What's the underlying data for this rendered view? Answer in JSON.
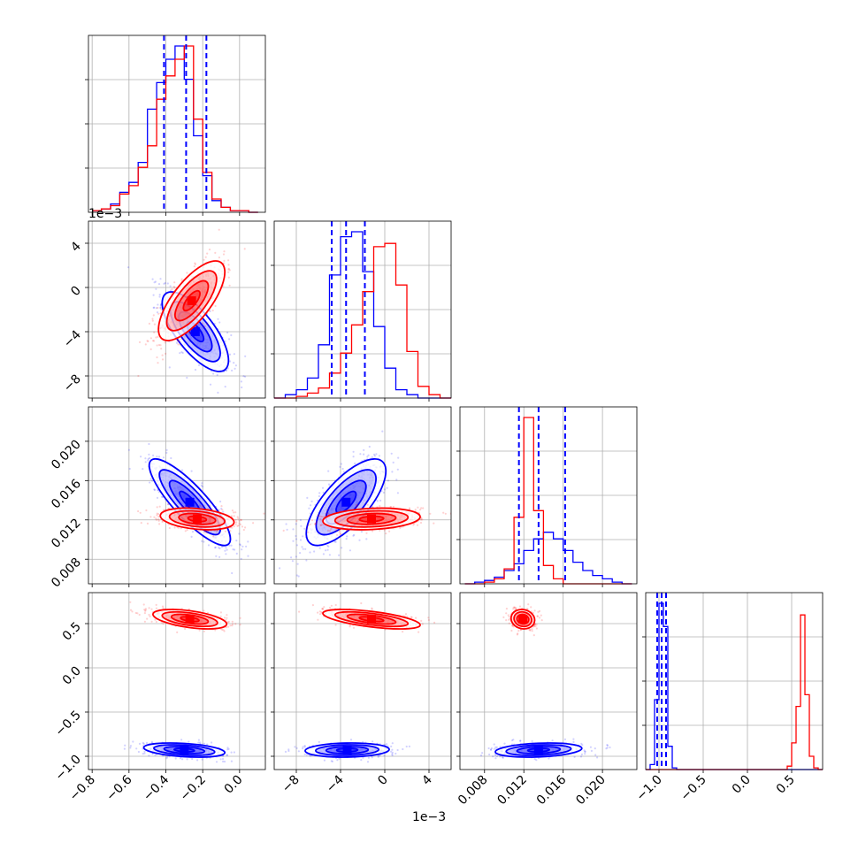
{
  "chart_data": {
    "type": "corner",
    "grid": true,
    "colors": {
      "series_a": "#0000ff",
      "series_b": "#ff0000",
      "grid": "#b0b0b0"
    },
    "series": [
      {
        "color": "#0000ff"
      },
      {
        "color": "#ff0000"
      }
    ],
    "parameters": [
      {
        "range": [
          -0.82,
          0.14
        ],
        "ticks": [
          -0.8,
          -0.6,
          -0.4,
          -0.2,
          0.0
        ],
        "tick_labels": [
          "−0.8",
          "−0.6",
          "−0.4",
          "−0.2",
          "0.0"
        ]
      },
      {
        "range": [
          -0.01,
          0.006
        ],
        "ticks": [
          -0.008,
          -0.004,
          0.0,
          0.004
        ],
        "tick_labels": [
          "−8",
          "−4",
          "0",
          "4"
        ],
        "offset_label": "1e−3"
      },
      {
        "range": [
          0.0055,
          0.0235
        ],
        "ticks": [
          0.008,
          0.012,
          0.016,
          0.02
        ],
        "tick_labels": [
          "0.008",
          "0.012",
          "0.016",
          "0.020"
        ]
      },
      {
        "range": [
          -1.15,
          0.85
        ],
        "ticks": [
          -1.0,
          -0.5,
          0.0,
          0.5
        ],
        "tick_labels": [
          "−1.0",
          "−0.5",
          "0.0",
          "0.5"
        ]
      }
    ],
    "diagonal": [
      {
        "bins": [
          -0.8,
          -0.75,
          -0.7,
          -0.65,
          -0.6,
          -0.55,
          -0.5,
          -0.45,
          -0.4,
          -0.35,
          -0.3,
          -0.25,
          -0.2,
          -0.15,
          -0.1,
          -0.05,
          0.0,
          0.05,
          0.1
        ],
        "counts": [
          [
            0.01,
            0.02,
            0.05,
            0.12,
            0.18,
            0.3,
            0.62,
            0.78,
            0.92,
            1.0,
            0.8,
            0.46,
            0.22,
            0.07,
            0.03,
            0.01,
            0.01,
            0.0
          ],
          [
            0.01,
            0.02,
            0.04,
            0.11,
            0.16,
            0.27,
            0.4,
            0.68,
            0.82,
            0.92,
            1.0,
            0.56,
            0.24,
            0.08,
            0.03,
            0.01,
            0.01,
            0.0
          ]
        ],
        "quantiles": [
          -0.41,
          -0.29,
          -0.18
        ]
      },
      {
        "bins": [
          -0.01,
          -0.009,
          -0.008,
          -0.007,
          -0.006,
          -0.005,
          -0.004,
          -0.003,
          -0.002,
          -0.001,
          0.0,
          0.001,
          0.002,
          0.003,
          0.004,
          0.005,
          0.006
        ],
        "counts": [
          [
            0.0,
            0.02,
            0.05,
            0.12,
            0.32,
            0.74,
            0.97,
            1.0,
            0.76,
            0.43,
            0.18,
            0.05,
            0.02,
            0.0,
            0.0,
            0.0
          ],
          [
            0.0,
            0.0,
            0.01,
            0.03,
            0.06,
            0.15,
            0.27,
            0.44,
            0.64,
            0.91,
            0.93,
            0.68,
            0.28,
            0.07,
            0.02,
            0.0
          ]
        ],
        "quantiles": [
          -0.0048,
          -0.0035,
          -0.0018
        ]
      },
      {
        "bins": [
          0.006,
          0.007,
          0.008,
          0.009,
          0.01,
          0.011,
          0.012,
          0.013,
          0.014,
          0.015,
          0.016,
          0.017,
          0.018,
          0.019,
          0.02,
          0.021,
          0.022,
          0.023
        ],
        "counts": [
          [
            0.0,
            0.01,
            0.02,
            0.04,
            0.08,
            0.12,
            0.2,
            0.27,
            0.31,
            0.27,
            0.2,
            0.13,
            0.08,
            0.05,
            0.03,
            0.01,
            0.0
          ],
          [
            0.0,
            0.0,
            0.01,
            0.03,
            0.09,
            0.4,
            1.0,
            0.44,
            0.11,
            0.03,
            0.0,
            0.0,
            0.0,
            0.0,
            0.0,
            0.0,
            0.0
          ]
        ],
        "quantiles": [
          0.0115,
          0.0135,
          0.0162
        ]
      },
      {
        "bins": [
          -1.15,
          -1.1,
          -1.05,
          -1.0,
          -0.95,
          -0.9,
          -0.85,
          -0.8,
          -0.75,
          -0.7,
          -0.65,
          -0.6,
          -0.55,
          -0.5,
          -0.45,
          -0.4,
          -0.35,
          -0.3,
          -0.25,
          -0.2,
          -0.15,
          -0.1,
          -0.05,
          0.0,
          0.05,
          0.1,
          0.15,
          0.2,
          0.25,
          0.3,
          0.35,
          0.4,
          0.45,
          0.5,
          0.55,
          0.6,
          0.65,
          0.7,
          0.75,
          0.8,
          0.85
        ],
        "counts": [
          [
            0.0,
            0.03,
            0.42,
            1.0,
            0.86,
            0.14,
            0.01,
            0.0,
            0.0,
            0.0,
            0.0,
            0.0,
            0.0,
            0.0,
            0.0,
            0.0,
            0.0,
            0.0,
            0.0,
            0.0,
            0.0,
            0.0,
            0.0,
            0.0,
            0.0,
            0.0,
            0.0,
            0.0,
            0.0,
            0.0,
            0.0,
            0.0,
            0.0,
            0.0,
            0.0,
            0.0,
            0.0,
            0.0,
            0.0,
            0.0
          ],
          [
            0.0,
            0.0,
            0.0,
            0.0,
            0.0,
            0.0,
            0.0,
            0.0,
            0.0,
            0.0,
            0.0,
            0.0,
            0.0,
            0.0,
            0.0,
            0.0,
            0.0,
            0.0,
            0.0,
            0.0,
            0.0,
            0.0,
            0.0,
            0.0,
            0.0,
            0.0,
            0.0,
            0.0,
            0.0,
            0.0,
            0.0,
            0.0,
            0.02,
            0.16,
            0.38,
            0.93,
            0.45,
            0.08,
            0.01,
            0.0
          ]
        ],
        "quantiles": [
          -1.02,
          -0.97,
          -0.92
        ]
      }
    ],
    "pairs": [
      {
        "row": 1,
        "col": 0,
        "blobs": [
          {
            "center": [
              -0.24,
              -0.004
            ],
            "sd": [
              0.09,
              0.0018
            ],
            "corr": -0.72,
            "samples": 700
          },
          {
            "center": [
              -0.26,
              -0.0012
            ],
            "sd": [
              0.09,
              0.0018
            ],
            "corr": 0.72,
            "samples": 700
          }
        ]
      },
      {
        "row": 2,
        "col": 0,
        "blobs": [
          {
            "center": [
              -0.27,
              0.0138
            ],
            "sd": [
              0.11,
              0.0022
            ],
            "corr": -0.85,
            "samples": 700
          },
          {
            "center": [
              -0.23,
              0.0121
            ],
            "sd": [
              0.1,
              0.00055
            ],
            "corr": -0.3,
            "samples": 700
          }
        ]
      },
      {
        "row": 2,
        "col": 1,
        "blobs": [
          {
            "center": [
              -0.0035,
              0.0138
            ],
            "sd": [
              0.0018,
              0.0022
            ],
            "corr": 0.72,
            "samples": 700
          },
          {
            "center": [
              -0.0012,
              0.0121
            ],
            "sd": [
              0.0022,
              0.00055
            ],
            "corr": 0.2,
            "samples": 700
          }
        ]
      },
      {
        "row": 3,
        "col": 0,
        "blobs": [
          {
            "center": [
              -0.3,
              -0.93
            ],
            "sd": [
              0.11,
              0.04
            ],
            "corr": -0.35,
            "samples": 500
          },
          {
            "center": [
              -0.27,
              0.55
            ],
            "sd": [
              0.1,
              0.055
            ],
            "corr": -0.5,
            "samples": 500
          }
        ]
      },
      {
        "row": 3,
        "col": 1,
        "blobs": [
          {
            "center": [
              -0.0034,
              -0.93
            ],
            "sd": [
              0.0019,
              0.04
            ],
            "corr": 0.1,
            "samples": 500
          },
          {
            "center": [
              -0.0012,
              0.55
            ],
            "sd": [
              0.0022,
              0.055
            ],
            "corr": -0.6,
            "samples": 500
          }
        ]
      },
      {
        "row": 3,
        "col": 2,
        "blobs": [
          {
            "center": [
              0.0135,
              -0.93
            ],
            "sd": [
              0.0022,
              0.04
            ],
            "corr": 0.25,
            "samples": 500
          },
          {
            "center": [
              0.0119,
              0.55
            ],
            "sd": [
              0.0006,
              0.055
            ],
            "corr": -0.1,
            "samples": 500
          }
        ]
      }
    ]
  }
}
